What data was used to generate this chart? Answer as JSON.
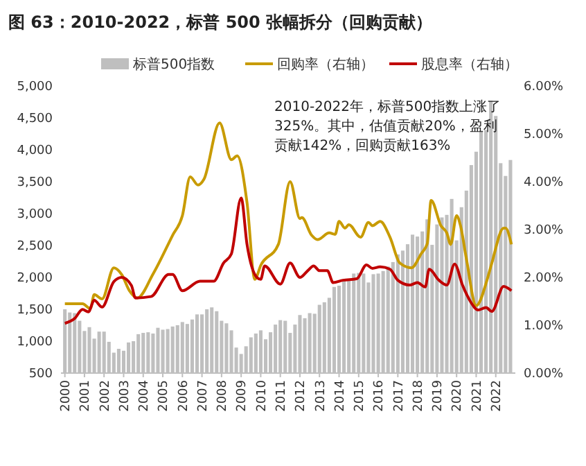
{
  "chart_data": {
    "type": "bar",
    "title": "图 63：2010-2022，标普 500 张幅拆分（回购贡献）",
    "x": [
      2000,
      2000.25,
      2000.5,
      2000.75,
      2001,
      2001.25,
      2001.5,
      2001.75,
      2002,
      2002.25,
      2002.5,
      2002.75,
      2003,
      2003.25,
      2003.5,
      2003.75,
      2004,
      2004.25,
      2004.5,
      2004.75,
      2005,
      2005.25,
      2005.5,
      2005.75,
      2006,
      2006.25,
      2006.5,
      2006.75,
      2007,
      2007.25,
      2007.5,
      2007.75,
      2008,
      2008.25,
      2008.5,
      2008.75,
      2009,
      2009.25,
      2009.5,
      2009.75,
      2010,
      2010.25,
      2010.5,
      2010.75,
      2011,
      2011.25,
      2011.5,
      2011.75,
      2012,
      2012.25,
      2012.5,
      2012.75,
      2013,
      2013.25,
      2013.5,
      2013.75,
      2014,
      2014.25,
      2014.5,
      2014.75,
      2015,
      2015.25,
      2015.5,
      2015.75,
      2016,
      2016.25,
      2016.5,
      2016.75,
      2017,
      2017.25,
      2017.5,
      2017.75,
      2018,
      2018.25,
      2018.5,
      2018.75,
      2019,
      2019.25,
      2019.5,
      2019.75,
      2020,
      2020.25,
      2020.5,
      2020.75,
      2021,
      2021.25,
      2021.5,
      2021.75,
      2022,
      2022.25,
      2022.5,
      2022.75
    ],
    "xlim": [
      1999.8,
      2023.0
    ],
    "xticks": [
      2000,
      2001,
      2002,
      2003,
      2004,
      2005,
      2006,
      2007,
      2008,
      2009,
      2010,
      2011,
      2012,
      2013,
      2014,
      2015,
      2016,
      2017,
      2018,
      2019,
      2020,
      2021,
      2022
    ],
    "ylim": [
      500,
      5000
    ],
    "yticks": [
      500,
      {
        "value": 1000,
        "label": "1,000"
      },
      {
        "value": 1500,
        "label": "1,500"
      },
      {
        "value": 2000,
        "label": "2,000"
      },
      {
        "value": 2500,
        "label": "2,500"
      },
      {
        "value": 3000,
        "label": "3,000"
      },
      {
        "value": 3500,
        "label": "3,500"
      },
      {
        "value": 4000,
        "label": "4,000"
      },
      {
        "value": 4500,
        "label": "4,500"
      },
      {
        "value": 5000,
        "label": "5,000"
      }
    ],
    "y2lim": [
      0,
      6
    ],
    "y2ticks": [
      {
        "value": 0,
        "label": "0.00%"
      },
      {
        "value": 1,
        "label": "1.00%"
      },
      {
        "value": 2,
        "label": "2.00%"
      },
      {
        "value": 3,
        "label": "3.00%"
      },
      {
        "value": 4,
        "label": "4.00%"
      },
      {
        "value": 5,
        "label": "5.00%"
      },
      {
        "value": 6,
        "label": "6.00%"
      }
    ],
    "legend": "top",
    "grid": false,
    "annotations": [
      "2010-2022年，标普500指数上涨了325%。其中，估值贡献20%，盈利贡献142%，回购贡献163%"
    ],
    "series": [
      {
        "name": "标普500指数",
        "color": "#bfbfbf",
        "values": [
          1500,
          1450,
          1440,
          1320,
          1160,
          1220,
          1040,
          1150,
          1150,
          990,
          820,
          880,
          850,
          980,
          1000,
          1110,
          1130,
          1140,
          1120,
          1210,
          1180,
          1190,
          1230,
          1250,
          1300,
          1270,
          1340,
          1420,
          1420,
          1500,
          1530,
          1470,
          1320,
          1280,
          1170,
          900,
          800,
          920,
          1060,
          1120,
          1170,
          1030,
          1140,
          1260,
          1330,
          1320,
          1130,
          1260,
          1410,
          1360,
          1440,
          1430,
          1570,
          1610,
          1680,
          1850,
          1870,
          1960,
          1970,
          2060,
          2070,
          2060,
          1920,
          2050,
          2060,
          2100,
          2170,
          2240,
          2360,
          2420,
          2520,
          2670,
          2640,
          2720,
          2910,
          2510,
          2830,
          2940,
          2980,
          3230,
          2580,
          3100,
          3360,
          3760,
          3970,
          4300,
          4310,
          4770,
          4530,
          3790,
          3590,
          3840
        ]
      },
      {
        "name": "回购率（右轴）",
        "type": "line",
        "axis": "y2",
        "color": "#c89b00",
        "x": [
          2000,
          2000.9,
          2001.3,
          2001.5,
          2001.9,
          2002.5,
          2002.9,
          2003.3,
          2003.7,
          2004.5,
          2005.5,
          2006,
          2006.4,
          2006.8,
          2007.1,
          2007.9,
          2008.5,
          2008.8,
          2009.3,
          2009.7,
          2010,
          2010.9,
          2011.5,
          2012,
          2012.1,
          2012.6,
          2012.9,
          2013.5,
          2013.8,
          2014,
          2014.3,
          2014.5,
          2015.1,
          2015.5,
          2015.7,
          2016.1,
          2016.6,
          2017.1,
          2017.7,
          2018.2,
          2018.5,
          2018.7,
          2019.2,
          2019.5,
          2019.7,
          2020,
          2020.2,
          2020.5,
          2021,
          2021.6,
          2021.8,
          2022.4,
          2022.5,
          2022.8
        ],
        "values": [
          1.45,
          1.45,
          1.35,
          1.64,
          1.55,
          2.2,
          2.06,
          1.72,
          1.57,
          2.07,
          2.88,
          3.29,
          4.1,
          3.93,
          4.05,
          5.23,
          4.46,
          4.54,
          3.56,
          1.96,
          2.25,
          2.69,
          4.0,
          3.23,
          3.25,
          2.88,
          2.79,
          2.93,
          2.9,
          3.17,
          3.03,
          3.1,
          2.84,
          3.15,
          3.08,
          3.17,
          2.84,
          2.3,
          2.2,
          2.5,
          2.7,
          3.61,
          3.08,
          2.93,
          2.69,
          3.29,
          3.08,
          2.39,
          1.41,
          2.01,
          2.3,
          3.03,
          3.03,
          2.69
        ]
      },
      {
        "name": "股息率（右轴）",
        "type": "line",
        "axis": "y2",
        "color": "#c00000",
        "x": [
          2000,
          2000.5,
          2000.9,
          2001.2,
          2001.5,
          2001.9,
          2002.5,
          2002.9,
          2003.4,
          2003.6,
          2004.4,
          2005.3,
          2005.5,
          2006,
          2006.9,
          2007.6,
          2008.1,
          2008.5,
          2009,
          2009.3,
          2009.8,
          2010,
          2010.2,
          2011,
          2011.5,
          2012,
          2012.4,
          2012.7,
          2013,
          2013.4,
          2013.7,
          2014.2,
          2014.9,
          2015.4,
          2015.7,
          2016.1,
          2016.6,
          2017,
          2017.6,
          2018,
          2018.4,
          2018.6,
          2019.1,
          2019.5,
          2019.9,
          2020.3,
          2020.7,
          2021.1,
          2021.5,
          2021.8,
          2022.4,
          2022.8
        ],
        "values": [
          1.04,
          1.14,
          1.33,
          1.28,
          1.52,
          1.38,
          1.91,
          2.0,
          1.83,
          1.57,
          1.6,
          2.06,
          2.06,
          1.72,
          1.92,
          1.92,
          2.3,
          2.49,
          3.66,
          2.69,
          2.0,
          1.96,
          2.24,
          1.86,
          2.3,
          2.0,
          2.14,
          2.24,
          2.14,
          2.14,
          1.89,
          1.94,
          1.97,
          2.26,
          2.19,
          2.22,
          2.17,
          1.94,
          1.84,
          1.89,
          1.8,
          2.17,
          1.94,
          1.84,
          2.28,
          1.84,
          1.5,
          1.32,
          1.37,
          1.29,
          1.81,
          1.72
        ]
      }
    ]
  }
}
